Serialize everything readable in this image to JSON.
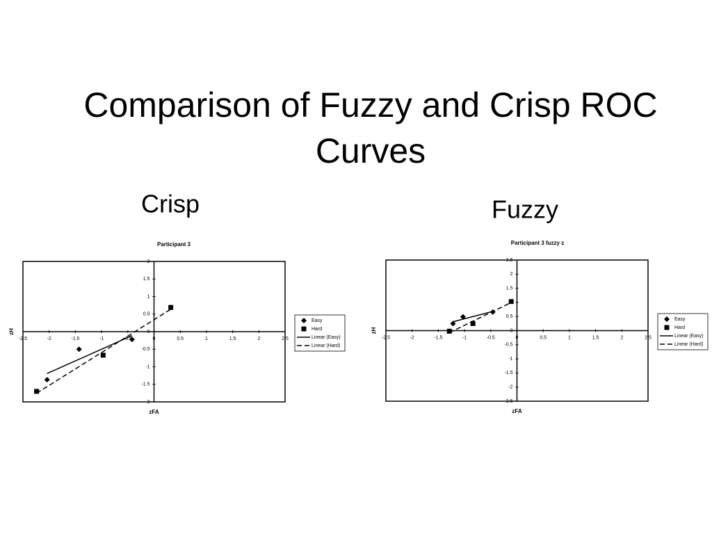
{
  "title": "Comparison of Fuzzy and Crisp ROC Curves",
  "chart_data": [
    {
      "type": "scatter",
      "panel_label": "Crisp",
      "title": "Participant 3",
      "x_label": "zFA",
      "y_label": "zH",
      "xlim": [
        -2.5,
        2.5
      ],
      "xticks": [
        -2.5,
        -2,
        -1.5,
        -1,
        -0.5,
        0,
        0.5,
        1,
        1.5,
        2,
        2.5
      ],
      "ylim": [
        -2,
        2
      ],
      "yticks": [
        -2,
        -1.5,
        -1,
        -0.5,
        0,
        0.5,
        1,
        1.5,
        2
      ],
      "grid": false,
      "legend": "right",
      "series": [
        {
          "name": "Easy",
          "trendline_name": "Linear (Easy)",
          "marker": "diamond",
          "line_style": "solid",
          "color": "#000000",
          "x": [
            -2.04,
            -1.43,
            -0.42
          ],
          "values": [
            -1.37,
            -0.5,
            -0.22
          ]
        },
        {
          "name": "Hard",
          "trendline_name": "Linear (Hard)",
          "marker": "square",
          "line_style": "dashed",
          "color": "#000000",
          "x": [
            -2.24,
            -0.97,
            0.32
          ],
          "values": [
            -1.7,
            -0.67,
            0.69
          ]
        }
      ]
    },
    {
      "type": "scatter",
      "panel_label": "Fuzzy",
      "title": "Participant 3 fuzzy z",
      "x_label": "zFA",
      "y_label": "zH",
      "xlim": [
        -2.5,
        2.5
      ],
      "xticks": [
        -2.5,
        -2,
        -1.5,
        -1,
        -0.5,
        0,
        0.5,
        1,
        1.5,
        2,
        2.5
      ],
      "ylim": [
        -2.5,
        2.5
      ],
      "yticks": [
        -2.5,
        -2,
        -1.5,
        -1,
        -0.5,
        0,
        0.5,
        1,
        1.5,
        2,
        2.5
      ],
      "grid": false,
      "legend": "right",
      "series": [
        {
          "name": "Easy",
          "trendline_name": "Linear (Easy)",
          "marker": "diamond",
          "line_style": "solid",
          "color": "#000000",
          "x": [
            -1.22,
            -1.03,
            -0.46
          ],
          "values": [
            0.25,
            0.49,
            0.66
          ]
        },
        {
          "name": "Hard",
          "trendline_name": "Linear (Hard)",
          "marker": "square",
          "line_style": "dashed",
          "color": "#000000",
          "x": [
            -1.29,
            -0.84,
            -0.11
          ],
          "values": [
            -0.02,
            0.25,
            1.03
          ]
        }
      ]
    }
  ]
}
